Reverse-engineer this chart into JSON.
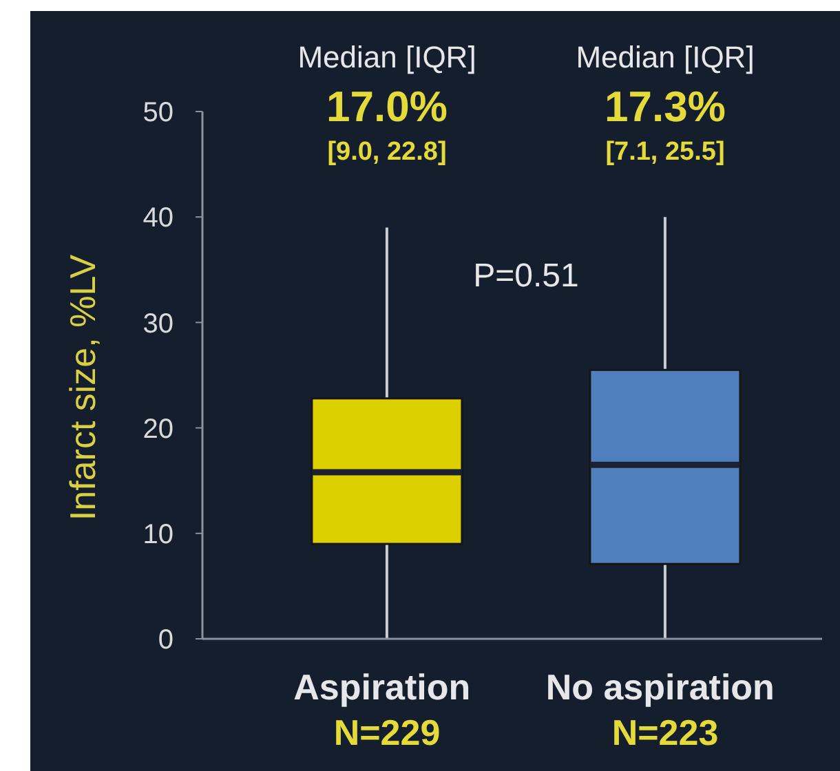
{
  "chart_data": {
    "type": "box",
    "categories": [
      "Aspiration\nN=229",
      "No aspiration\nN=223"
    ],
    "boxes": [
      {
        "low": 0,
        "q1": 9.0,
        "median": 15.8,
        "q3": 22.8,
        "high": 39
      },
      {
        "low": 0,
        "q1": 7.1,
        "median": 16.5,
        "q3": 25.5,
        "high": 40
      }
    ],
    "colors": [
      "#ddd000",
      "#4f80bd"
    ],
    "ylabel": "Infarct size, %LV",
    "ylim": [
      0,
      50
    ],
    "yticks": [
      0,
      10,
      20,
      30,
      40,
      50
    ],
    "annotations": [
      "Median [IQR]",
      "17.0%",
      "[9.0, 22.8]",
      "Median [IQR]",
      "17.3%",
      "[7.1, 25.5]",
      "P=0.51"
    ]
  }
}
